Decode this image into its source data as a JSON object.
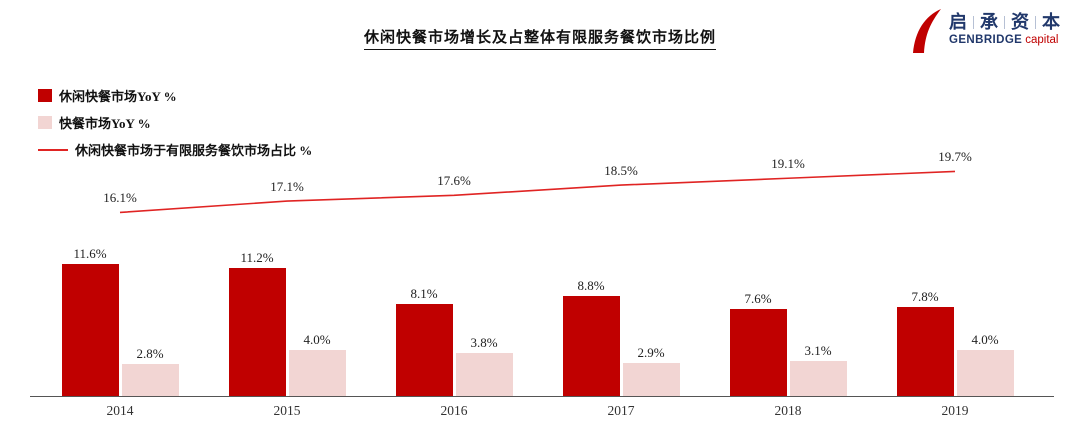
{
  "title": "休闲快餐市场增长及占整体有限服务餐饮市场比例",
  "logo": {
    "cn_chars": [
      "启",
      "承",
      "资",
      "本"
    ],
    "en_bold": "GENBRIDGE",
    "en_light": "capital",
    "swoosh_color": "#c00000",
    "navy": "#21386b"
  },
  "legend": {
    "items": [
      {
        "label": "休闲快餐市场YoY %",
        "swatch": "square",
        "color": "#c00000"
      },
      {
        "label": "快餐市场YoY %",
        "swatch": "square",
        "color": "#f2d5d3"
      },
      {
        "label": "休闲快餐市场于有限服务餐饮市场占比 %",
        "swatch": "line",
        "color": "#e02423"
      }
    ]
  },
  "chart_data": {
    "type": "bar+line",
    "title": "休闲快餐市场增长及占整体有限服务餐饮市场比例",
    "categories": [
      "2014",
      "2015",
      "2016",
      "2017",
      "2018",
      "2019"
    ],
    "series": [
      {
        "name": "休闲快餐市场YoY %",
        "type": "bar",
        "color": "#c00000",
        "values": [
          11.6,
          11.2,
          8.1,
          8.8,
          7.6,
          7.8
        ]
      },
      {
        "name": "快餐市场YoY %",
        "type": "bar",
        "color": "#f2d5d3",
        "values": [
          2.8,
          4.0,
          3.8,
          2.9,
          3.1,
          4.0
        ]
      },
      {
        "name": "休闲快餐市场于有限服务餐饮市场占比 %",
        "type": "line",
        "color": "#e02423",
        "values": [
          16.1,
          17.1,
          17.6,
          18.5,
          19.1,
          19.7
        ]
      }
    ],
    "value_suffix": "%",
    "xlabel": "",
    "ylabel": "",
    "ylim": [
      0,
      21
    ],
    "grid": false,
    "legend_position": "top-left"
  }
}
